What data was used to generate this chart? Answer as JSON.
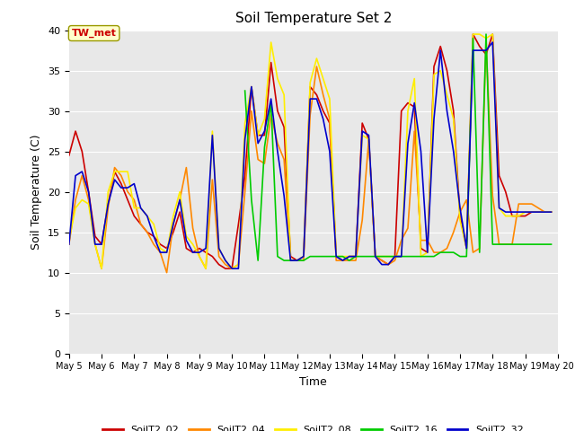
{
  "title": "Soil Temperature Set 2",
  "xlabel": "Time",
  "ylabel": "Soil Temperature (C)",
  "ylim": [
    0,
    40
  ],
  "yticks": [
    0,
    5,
    10,
    15,
    20,
    25,
    30,
    35,
    40
  ],
  "background_color": "#e8e8e8",
  "annotation_text": "TW_met",
  "annotation_color": "#cc0000",
  "annotation_bg": "#ffffcc",
  "series": {
    "SoilT2_02": {
      "color": "#cc0000",
      "times": [
        5.0,
        5.2,
        5.4,
        5.6,
        5.8,
        6.0,
        6.2,
        6.4,
        6.6,
        6.8,
        7.0,
        7.2,
        7.4,
        7.6,
        7.8,
        8.0,
        8.2,
        8.4,
        8.6,
        8.8,
        9.0,
        9.2,
        9.4,
        9.6,
        9.8,
        10.0,
        10.2,
        10.4,
        10.6,
        10.8,
        11.0,
        11.2,
        11.4,
        11.6,
        11.8,
        12.0,
        12.2,
        12.4,
        12.6,
        12.8,
        13.0,
        13.2,
        13.4,
        13.6,
        13.8,
        14.0,
        14.2,
        14.4,
        14.6,
        14.8,
        15.0,
        15.2,
        15.4,
        15.6,
        15.8,
        16.0,
        16.2,
        16.4,
        16.6,
        16.8,
        17.0,
        17.2,
        17.4,
        17.6,
        17.8,
        18.0,
        18.2,
        18.4,
        18.6,
        18.8,
        19.0,
        19.2,
        19.4,
        19.6,
        19.8
      ],
      "values": [
        24.5,
        27.5,
        25.0,
        20.0,
        14.5,
        13.5,
        18.5,
        22.5,
        21.0,
        19.0,
        17.0,
        16.0,
        15.0,
        14.5,
        13.5,
        13.0,
        15.0,
        17.5,
        13.0,
        12.5,
        13.0,
        12.5,
        12.0,
        11.0,
        10.5,
        10.5,
        16.0,
        22.0,
        33.0,
        27.0,
        27.0,
        36.0,
        30.0,
        28.0,
        12.0,
        11.5,
        12.0,
        33.0,
        32.0,
        30.0,
        28.5,
        12.0,
        11.5,
        12.0,
        12.0,
        28.5,
        26.5,
        12.0,
        11.5,
        11.0,
        12.0,
        30.0,
        31.0,
        30.5,
        13.0,
        12.5,
        35.5,
        38.0,
        35.0,
        30.0,
        17.0,
        13.0,
        39.5,
        38.0,
        37.0,
        39.5,
        22.0,
        20.0,
        17.0,
        17.0,
        17.0,
        17.5,
        17.5,
        17.5,
        17.5
      ]
    },
    "SoilT2_04": {
      "color": "#ff8800",
      "times": [
        5.0,
        5.2,
        5.4,
        5.6,
        5.8,
        6.0,
        6.2,
        6.4,
        6.6,
        6.8,
        7.0,
        7.2,
        7.4,
        7.6,
        7.8,
        8.0,
        8.2,
        8.4,
        8.6,
        8.8,
        9.0,
        9.2,
        9.4,
        9.6,
        9.8,
        10.0,
        10.2,
        10.4,
        10.6,
        10.8,
        11.0,
        11.2,
        11.4,
        11.6,
        11.8,
        12.0,
        12.2,
        12.4,
        12.6,
        12.8,
        13.0,
        13.2,
        13.4,
        13.6,
        13.8,
        14.0,
        14.2,
        14.4,
        14.6,
        14.8,
        15.0,
        15.2,
        15.4,
        15.6,
        15.8,
        16.0,
        16.2,
        16.4,
        16.6,
        16.8,
        17.0,
        17.2,
        17.4,
        17.6,
        17.8,
        18.0,
        18.2,
        18.4,
        18.6,
        18.8,
        19.0,
        19.2,
        19.4,
        19.6,
        19.8
      ],
      "values": [
        13.5,
        19.0,
        22.0,
        19.0,
        13.5,
        10.5,
        18.0,
        23.0,
        22.0,
        20.0,
        19.0,
        16.0,
        15.0,
        13.5,
        12.5,
        10.0,
        16.0,
        19.0,
        23.0,
        15.5,
        12.0,
        10.5,
        21.5,
        12.0,
        11.0,
        10.5,
        11.0,
        20.0,
        30.0,
        24.0,
        23.5,
        29.5,
        26.0,
        24.0,
        11.5,
        11.5,
        11.5,
        29.5,
        35.5,
        32.0,
        29.0,
        11.5,
        11.5,
        11.5,
        11.5,
        16.5,
        26.5,
        12.0,
        11.5,
        11.0,
        11.5,
        14.0,
        15.5,
        27.5,
        14.0,
        14.0,
        12.5,
        12.5,
        13.0,
        15.0,
        17.5,
        19.0,
        12.5,
        13.0,
        38.5,
        19.5,
        13.5,
        13.5,
        13.5,
        18.5,
        18.5,
        18.5,
        18.0,
        17.5,
        17.5
      ]
    },
    "SoilT2_08": {
      "color": "#ffee00",
      "times": [
        5.0,
        5.2,
        5.4,
        5.6,
        5.8,
        6.0,
        6.2,
        6.4,
        6.6,
        6.8,
        7.0,
        7.2,
        7.4,
        7.6,
        7.8,
        8.0,
        8.2,
        8.4,
        8.6,
        8.8,
        9.0,
        9.2,
        9.4,
        9.6,
        9.8,
        10.0,
        10.2,
        10.4,
        10.6,
        10.8,
        11.0,
        11.2,
        11.4,
        11.6,
        11.8,
        12.0,
        12.2,
        12.4,
        12.6,
        12.8,
        13.0,
        13.2,
        13.4,
        13.6,
        13.8,
        14.0,
        14.2,
        14.4,
        14.6,
        14.8,
        15.0,
        15.2,
        15.4,
        15.6,
        15.8,
        16.0,
        16.2,
        16.4,
        16.6,
        16.8,
        17.0,
        17.2,
        17.4,
        17.6,
        17.8,
        18.0,
        18.2,
        18.4,
        18.6,
        18.8,
        19.0,
        19.2,
        19.4,
        19.6,
        19.8
      ],
      "values": [
        14.0,
        18.0,
        19.0,
        18.5,
        13.5,
        10.5,
        20.0,
        22.5,
        22.5,
        22.5,
        18.0,
        18.0,
        17.0,
        16.0,
        13.0,
        12.5,
        17.0,
        20.0,
        14.5,
        13.5,
        12.0,
        10.5,
        27.5,
        13.0,
        11.5,
        10.5,
        11.0,
        28.5,
        33.0,
        27.0,
        29.0,
        38.5,
        34.0,
        32.0,
        11.5,
        11.5,
        12.0,
        33.5,
        36.5,
        34.0,
        31.5,
        12.0,
        12.0,
        12.0,
        12.0,
        27.0,
        26.5,
        12.0,
        12.0,
        12.0,
        12.0,
        12.0,
        30.0,
        34.0,
        12.0,
        12.5,
        34.5,
        35.0,
        32.0,
        29.0,
        16.5,
        13.0,
        39.5,
        39.5,
        39.0,
        39.5,
        18.0,
        17.0,
        17.0,
        17.0,
        17.5,
        17.5,
        17.5,
        17.5,
        17.5
      ]
    },
    "SoilT2_16": {
      "color": "#00cc00",
      "times": [
        10.4,
        10.6,
        10.8,
        11.0,
        11.2,
        11.4,
        11.6,
        11.8,
        12.0,
        12.2,
        12.4,
        12.6,
        12.8,
        13.0,
        13.2,
        13.4,
        13.6,
        13.8,
        14.0,
        14.2,
        14.4,
        14.6,
        14.8,
        15.0,
        15.2,
        15.4,
        15.6,
        15.8,
        16.0,
        16.2,
        16.4,
        16.6,
        16.8,
        17.0,
        17.2,
        17.4,
        17.6,
        17.8,
        18.0,
        18.2,
        18.4,
        18.6,
        18.8,
        19.0,
        19.2,
        19.4,
        19.6,
        19.8
      ],
      "values": [
        32.5,
        19.0,
        11.5,
        25.5,
        31.0,
        12.0,
        11.5,
        11.5,
        11.5,
        11.5,
        12.0,
        12.0,
        12.0,
        12.0,
        12.0,
        12.0,
        11.5,
        12.0,
        12.0,
        12.0,
        12.0,
        12.0,
        12.0,
        12.0,
        12.0,
        12.0,
        12.0,
        12.0,
        12.0,
        12.0,
        12.5,
        12.5,
        12.5,
        12.0,
        12.0,
        39.0,
        12.5,
        39.5,
        13.5,
        13.5,
        13.5,
        13.5,
        13.5,
        13.5,
        13.5,
        13.5,
        13.5,
        13.5
      ]
    },
    "SoilT2_32": {
      "color": "#0000cc",
      "times": [
        5.0,
        5.2,
        5.4,
        5.6,
        5.8,
        6.0,
        6.2,
        6.4,
        6.6,
        6.8,
        7.0,
        7.2,
        7.4,
        7.6,
        7.8,
        8.0,
        8.2,
        8.4,
        8.6,
        8.8,
        9.0,
        9.2,
        9.4,
        9.6,
        9.8,
        10.0,
        10.2,
        10.4,
        10.6,
        10.8,
        11.0,
        11.2,
        11.4,
        11.6,
        11.8,
        12.0,
        12.2,
        12.4,
        12.6,
        12.8,
        13.0,
        13.2,
        13.4,
        13.6,
        13.8,
        14.0,
        14.2,
        14.4,
        14.6,
        14.8,
        15.0,
        15.2,
        15.4,
        15.6,
        15.8,
        16.0,
        16.2,
        16.4,
        16.6,
        16.8,
        17.0,
        17.2,
        17.4,
        17.6,
        17.8,
        18.0,
        18.2,
        18.4,
        18.6,
        18.8,
        19.0,
        19.2,
        19.4,
        19.6,
        19.8
      ],
      "values": [
        13.5,
        22.0,
        22.5,
        20.0,
        13.5,
        13.5,
        18.5,
        21.5,
        20.5,
        20.5,
        21.0,
        18.0,
        17.0,
        14.5,
        12.5,
        12.5,
        16.0,
        19.0,
        14.0,
        12.5,
        12.5,
        13.0,
        27.0,
        13.0,
        11.5,
        10.5,
        10.5,
        26.5,
        33.0,
        26.0,
        27.5,
        31.5,
        25.0,
        19.5,
        11.5,
        11.5,
        12.0,
        31.5,
        31.5,
        29.0,
        25.0,
        12.0,
        11.5,
        12.0,
        12.0,
        27.5,
        27.0,
        12.0,
        11.0,
        11.0,
        12.0,
        12.0,
        26.0,
        31.0,
        25.0,
        12.5,
        29.0,
        37.5,
        30.0,
        25.0,
        18.0,
        13.0,
        37.5,
        37.5,
        37.5,
        38.5,
        18.0,
        17.5,
        17.5,
        17.5,
        17.5,
        17.5,
        17.5,
        17.5,
        17.5
      ]
    }
  },
  "xtick_positions": [
    5,
    6,
    7,
    8,
    9,
    10,
    11,
    12,
    13,
    14,
    15,
    16,
    17,
    18,
    19,
    20
  ],
  "xtick_labels": [
    "May 5",
    "May 6",
    "May 7",
    "May 8",
    "May 9",
    "May 10",
    "May 11",
    "May 12",
    "May 13",
    "May 14",
    "May 15",
    "May 16",
    "May 17",
    "May 18",
    "May 19",
    "May 20"
  ],
  "legend_entries": [
    "SoilT2_02",
    "SoilT2_04",
    "SoilT2_08",
    "SoilT2_16",
    "SoilT2_32"
  ],
  "legend_colors": [
    "#cc0000",
    "#ff8800",
    "#ffee00",
    "#00cc00",
    "#0000cc"
  ]
}
